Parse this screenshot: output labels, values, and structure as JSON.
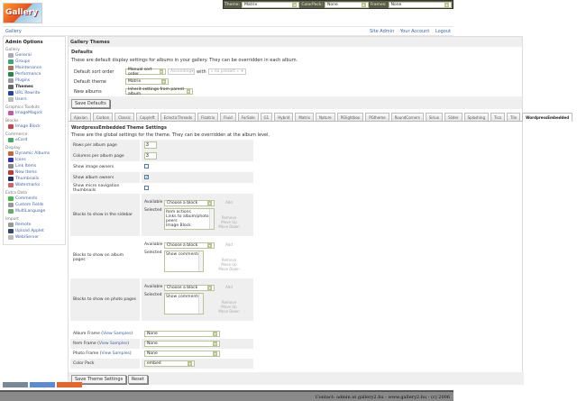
{
  "logo": "Gallery",
  "topbar": {
    "theme_label": "Theme:",
    "theme": "Matrix",
    "colorpack_label": "ColorPack:",
    "colorpack": "None",
    "frames_label": "Frames:",
    "frames": "None"
  },
  "breadcrumb": "Gallery",
  "user_links": [
    "Site Admin",
    "Your Account",
    "Logout"
  ],
  "sidebar": {
    "title": "Admin Options",
    "groups": [
      {
        "name": "Gallery",
        "items": [
          {
            "label": "General",
            "color": "#aab"
          },
          {
            "label": "Groups",
            "color": "#3a7"
          },
          {
            "label": "Maintenance",
            "color": "#a75"
          },
          {
            "label": "Performance",
            "color": "#284"
          },
          {
            "label": "Plugins",
            "color": "#999"
          },
          {
            "label": "Themes",
            "color": "#666",
            "active": true
          },
          {
            "label": "URL Rewrite",
            "color": "#24a"
          },
          {
            "label": "Users",
            "color": "#bbb"
          }
        ]
      },
      {
        "name": "Graphics Toolkits",
        "items": [
          {
            "label": "ImageMagick",
            "color": "#c5a"
          }
        ]
      },
      {
        "name": "Blocks",
        "items": [
          {
            "label": "Image Block",
            "color": "#c44"
          }
        ]
      },
      {
        "name": "Commerce",
        "items": [
          {
            "label": "eCard",
            "color": "#4a6"
          }
        ]
      },
      {
        "name": "Display",
        "items": [
          {
            "label": "Dynamic Albums",
            "color": "#c63"
          },
          {
            "label": "Icons",
            "color": "#33c"
          },
          {
            "label": "Link Items",
            "color": "#888"
          },
          {
            "label": "New Items",
            "color": "#c33"
          },
          {
            "label": "Thumbnails",
            "color": "#236"
          },
          {
            "label": "Watermarks",
            "color": "#c66"
          }
        ]
      },
      {
        "name": "Extra Data",
        "items": [
          {
            "label": "Comments",
            "color": "#4b4"
          },
          {
            "label": "Custom Fields",
            "color": "#999"
          },
          {
            "label": "MultiLanguage",
            "color": "#6a6"
          }
        ]
      },
      {
        "name": "Import",
        "items": [
          {
            "label": "Remote",
            "color": "#999"
          },
          {
            "label": "Upload Applet",
            "color": "#347"
          },
          {
            "label": "Web/Server",
            "color": "#bbb"
          }
        ]
      }
    ]
  },
  "main": {
    "title": "Gallery Themes",
    "defaults": {
      "title": "Defaults",
      "desc": "These are default display settings for albums in your gallery. They can be overridden in each album.",
      "sort_label": "Default sort order",
      "sort": "Manual sort order",
      "direction": "Ascending",
      "with_label": "with",
      "presort": "« no presort »",
      "theme_label": "Default theme",
      "theme": "Matrix",
      "new_label": "New albums",
      "new": "Inherit settings from parent album",
      "save": "Save Defaults"
    },
    "tabs": [
      "Ajaxian",
      "Carbon",
      "Classic",
      "Copyleft",
      "EclecticThreads",
      "Floatrix",
      "Fluid",
      "ForSale",
      "G1",
      "Hybrid",
      "Matrix",
      "Nature",
      "PGlightbox",
      "PGtheme",
      "RoundCorners",
      "Siriux",
      "Slider",
      "Splashing",
      "Tico",
      "Tile",
      "WordpressEmbedded"
    ],
    "active_tab": "WordpressEmbedded",
    "settings": {
      "title": "WordpressEmbedded Theme Settings",
      "desc": "These are the global settings for the theme. They can be overridden at the album level.",
      "rows_label": "Rows per album page",
      "rows": "3",
      "cols_label": "Columns per album page",
      "cols": "3",
      "img_owners_label": "Show image owners",
      "img_owners": false,
      "alb_owners_label": "Show album owners",
      "alb_owners": true,
      "micro_label": "Show micro navigation thumbnails",
      "micro": false,
      "available_label": "Available",
      "selected_label": "Selected",
      "choose": "Choose a block",
      "add": "Add",
      "remove": "Remove",
      "up": "Move Up",
      "down": "Move Down",
      "sidebar_label": "Blocks to show in the sidebar",
      "sidebar_blocks": "Item actions\nLinks to album/photo peers\nImage Block",
      "album_label": "Blocks to show on album pages",
      "album_blocks": "Show comments",
      "photo_label": "Blocks to show on photo pages",
      "photo_blocks": "Show comments",
      "album_frame_label": "Album Frame",
      "item_frame_label": "Item Frame",
      "photo_frame_label": "Photo Frame",
      "view_samples": "View Samples",
      "album_frame": "None",
      "item_frame": "None",
      "photo_frame": "None",
      "colorpack_label": "Color Pack",
      "colorpack": "embed",
      "save": "Save Theme Settings",
      "reset": "Reset"
    }
  },
  "badges": [
    "XHTML 1.0",
    "FIREFOX",
    "GALLERY 2"
  ],
  "footer": "Contact: admin at gallery2.hu - www.gallery2.hu - (c) 2006"
}
